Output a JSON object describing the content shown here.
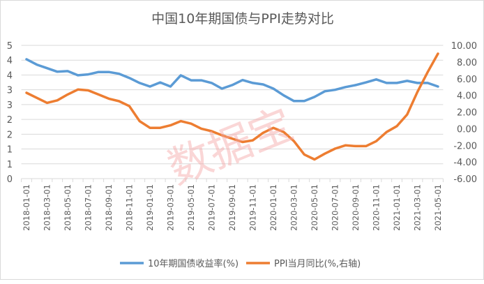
{
  "chart_data": {
    "type": "line",
    "title": "中国10年期国债与PPI走势对比",
    "watermark": "数据宝",
    "x": [
      "2018-01",
      "2018-02",
      "2018-03",
      "2018-04",
      "2018-05",
      "2018-06",
      "2018-07",
      "2018-08",
      "2018-09",
      "2018-10",
      "2018-11",
      "2018-12",
      "2019-01",
      "2019-02",
      "2019-03",
      "2019-04",
      "2019-05",
      "2019-06",
      "2019-07",
      "2019-08",
      "2019-09",
      "2019-10",
      "2019-11",
      "2019-12",
      "2020-01",
      "2020-02",
      "2020-03",
      "2020-04",
      "2020-05",
      "2020-06",
      "2020-07",
      "2020-08",
      "2020-09",
      "2020-10",
      "2020-11",
      "2020-12",
      "2021-01",
      "2021-02",
      "2021-03",
      "2021-04",
      "2021-05"
    ],
    "x_tick_labels": [
      "2018-01-01",
      "2018-03-01",
      "2018-05-01",
      "2018-07-01",
      "2018-09-01",
      "2018-11-01",
      "2019-01-01",
      "2019-03-01",
      "2019-05-01",
      "2019-07-01",
      "2019-09-01",
      "2019-11-01",
      "2020-01-01",
      "2020-03-01",
      "2020-05-01",
      "2020-07-01",
      "2020-09-01",
      "2020-11-01",
      "2021-01-01",
      "2021-03-01",
      "2021-05-01"
    ],
    "left_axis": {
      "range": [
        0,
        4.5
      ],
      "step": 0.5,
      "tick_labels": [
        "0",
        "1",
        "1",
        "2",
        "2",
        "3",
        "3",
        "4",
        "4",
        "5"
      ]
    },
    "right_axis": {
      "range": [
        -6,
        10
      ],
      "step": 2,
      "tick_labels": [
        "-6.00",
        "-4.00",
        "-2.00",
        "0.00",
        "2.00",
        "4.00",
        "6.00",
        "8.00",
        "10.00"
      ]
    },
    "grid": true,
    "legend_position": "bottom",
    "series": [
      {
        "name": "10年期国债收益率(%)",
        "axis": "left",
        "color": "#5b9bd5",
        "values": [
          4.03,
          3.85,
          3.73,
          3.61,
          3.63,
          3.49,
          3.52,
          3.6,
          3.6,
          3.54,
          3.4,
          3.23,
          3.11,
          3.25,
          3.11,
          3.49,
          3.32,
          3.32,
          3.23,
          3.04,
          3.16,
          3.33,
          3.23,
          3.18,
          3.04,
          2.81,
          2.62,
          2.62,
          2.76,
          2.95,
          3.0,
          3.09,
          3.16,
          3.25,
          3.35,
          3.23,
          3.23,
          3.3,
          3.23,
          3.23,
          3.11
        ]
      },
      {
        "name": "PPI当月同比(%,右轴)",
        "axis": "right",
        "color": "#ed7d31",
        "values": [
          4.3,
          3.7,
          3.1,
          3.4,
          4.1,
          4.7,
          4.6,
          4.1,
          3.6,
          3.3,
          2.7,
          0.9,
          0.1,
          0.1,
          0.4,
          0.9,
          0.6,
          0.0,
          -0.3,
          -0.8,
          -1.2,
          -1.6,
          -1.4,
          -0.5,
          0.1,
          -0.4,
          -1.5,
          -3.1,
          -3.7,
          -3.0,
          -2.4,
          -2.0,
          -2.1,
          -2.1,
          -1.5,
          -0.4,
          0.3,
          1.7,
          4.4,
          6.8,
          9.0
        ]
      }
    ]
  }
}
